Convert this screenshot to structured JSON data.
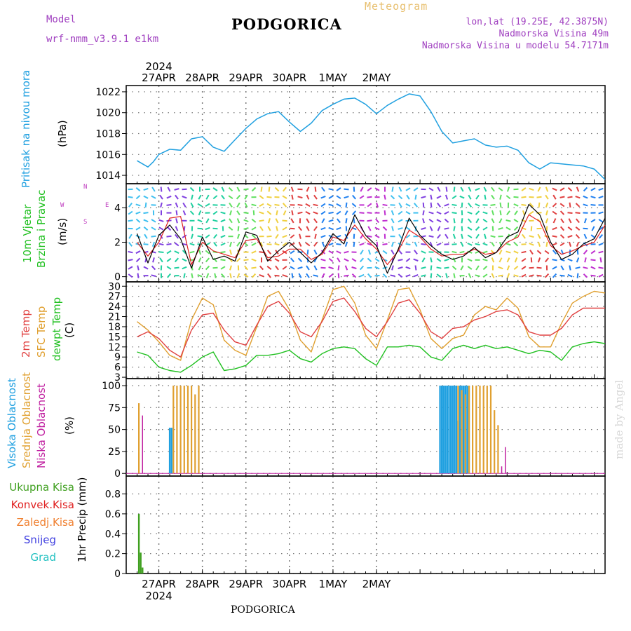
{
  "header": {
    "model_label": "Model",
    "model_name": "wrf-nmm_v3.9.1  e1km",
    "title": "PODGORICA",
    "meteogram_label": "Meteogram",
    "lonlat": "lon,lat (19.25E, 42.3875N)",
    "elevation": "Nadmorska Visina 49m",
    "model_elevation": "Nadmorska Visina u modelu 54.7171m"
  },
  "footer": {
    "station": "PODGORICA",
    "credit": "made by Angel"
  },
  "colors": {
    "pressure": "#20a0e0",
    "wind_label": "#20c020",
    "wind_speed": "#000000",
    "wind_speed_sfc": "#e02020",
    "temp2m": "#e04040",
    "sfc_temp": "#e0a030",
    "dewpt": "#20c020",
    "cloud_high": "#20a0e0",
    "cloud_mid": "#e0a030",
    "cloud_low": "#c020a0",
    "precip_total": "#40a020",
    "precip_conv": "#e02020",
    "precip_freez": "#f08030",
    "snow": "#4040e0",
    "grad": "#20c0c0",
    "compass": "#c040c0"
  },
  "chart_data": [
    {
      "type": "line",
      "panel": "pressure",
      "ylabel_main": "Pritisak na nivou mora",
      "ylabel_unit": "(hPa)",
      "yticks": [
        1014,
        1016,
        1018,
        1020,
        1022
      ],
      "ylim": [
        1013.2,
        1022.6
      ],
      "x_day_labels": [
        "27APR",
        "28APR",
        "29APR",
        "30APR",
        "1MAY",
        "2MAY"
      ],
      "year_label": "2024",
      "x_hours": [
        0,
        6,
        9,
        12,
        18,
        24,
        30,
        36,
        42,
        48,
        54,
        60,
        66,
        72,
        78,
        84,
        90,
        96,
        102,
        108,
        114,
        120,
        126,
        132,
        138,
        144,
        150,
        156,
        162,
        168,
        174,
        180,
        186,
        192,
        198,
        204,
        210,
        216,
        222,
        228,
        234,
        240,
        246,
        252,
        258
      ],
      "series": [
        {
          "name": "MSLP",
          "values": [
            1015.4,
            1014.8,
            1015.3,
            1016.0,
            1016.5,
            1016.4,
            1017.5,
            1017.7,
            1016.7,
            1016.3,
            1017.4,
            1018.5,
            1019.4,
            1019.9,
            1020.1,
            1019.1,
            1018.2,
            1019.0,
            1020.2,
            1020.8,
            1021.3,
            1021.4,
            1020.8,
            1019.9,
            1020.7,
            1021.3,
            1021.8,
            1021.6,
            1020.1,
            1018.2,
            1017.1,
            1017.3,
            1017.5,
            1016.9,
            1016.7,
            1016.8,
            1016.4,
            1015.2,
            1014.6,
            1015.2,
            1015.1,
            1015.0,
            1014.9,
            1014.6,
            1013.6
          ]
        }
      ]
    },
    {
      "type": "line",
      "panel": "wind",
      "ylabel_main_1": "10m Vjetar",
      "ylabel_main_2": "Brzina i Pravac",
      "ylabel_unit": "(m/s)",
      "compass_labels": {
        "n": "N",
        "w": "W",
        "e": "E",
        "s": "S"
      },
      "yticks": [
        0,
        2,
        4
      ],
      "ylim": [
        -0.3,
        5.4
      ],
      "x_hours": [
        0,
        6,
        12,
        18,
        24,
        30,
        36,
        42,
        48,
        54,
        60,
        66,
        72,
        78,
        84,
        90,
        96,
        102,
        108,
        114,
        120,
        126,
        132,
        138,
        144,
        150,
        156,
        162,
        168,
        174,
        180,
        186,
        192,
        198,
        204,
        210,
        216,
        222,
        228,
        234,
        240,
        246,
        252,
        258
      ],
      "series": [
        {
          "name": "10m wind",
          "values": [
            2.5,
            0.8,
            2.4,
            3.0,
            2.2,
            0.5,
            2.3,
            1.0,
            1.2,
            0.9,
            2.6,
            2.4,
            0.9,
            1.5,
            2.0,
            1.4,
            0.8,
            1.4,
            2.5,
            1.9,
            3.6,
            2.4,
            1.8,
            0.2,
            1.6,
            3.4,
            2.4,
            1.8,
            1.3,
            1.0,
            1.2,
            1.7,
            1.1,
            1.4,
            2.3,
            2.6,
            4.2,
            3.6,
            2.0,
            1.0,
            1.3,
            1.9,
            2.2,
            3.4
          ]
        },
        {
          "name": "surface wind",
          "values": [
            2.0,
            1.2,
            2.0,
            3.4,
            3.5,
            0.7,
            2.0,
            1.5,
            1.3,
            1.1,
            2.1,
            2.2,
            1.1,
            1.2,
            1.6,
            1.6,
            1.0,
            1.3,
            2.3,
            2.1,
            3.0,
            2.2,
            1.6,
            0.7,
            1.5,
            2.7,
            2.3,
            1.6,
            1.2,
            1.3,
            1.3,
            1.6,
            1.3,
            1.4,
            2.0,
            2.3,
            3.6,
            3.2,
            1.8,
            1.3,
            1.5,
            1.8,
            2.0,
            3.0
          ]
        }
      ]
    },
    {
      "type": "line",
      "panel": "temperature",
      "ylabel_1": "2m Temp",
      "ylabel_2": "SFC Temp",
      "ylabel_3": "dewpt Temp",
      "ylabel_unit": "(C)",
      "yticks": [
        3,
        6,
        9,
        12,
        15,
        18,
        21,
        24,
        27,
        30
      ],
      "ylim": [
        2.6,
        31.3
      ],
      "x_hours": [
        0,
        6,
        12,
        18,
        24,
        30,
        36,
        42,
        48,
        54,
        60,
        66,
        72,
        78,
        84,
        90,
        96,
        102,
        108,
        114,
        120,
        126,
        132,
        138,
        144,
        150,
        156,
        162,
        168,
        174,
        180,
        186,
        192,
        198,
        204,
        210,
        216,
        222,
        228,
        234,
        240,
        246,
        252,
        258
      ],
      "series": [
        {
          "name": "2m Temp",
          "values": [
            15.0,
            16.5,
            14.5,
            11.0,
            9.0,
            17.0,
            21.5,
            22.0,
            17.0,
            13.5,
            12.5,
            18.5,
            24.0,
            25.5,
            22.0,
            16.5,
            15.0,
            19.5,
            25.5,
            26.5,
            22.5,
            17.5,
            15.0,
            19.5,
            25.0,
            26.0,
            22.0,
            16.5,
            14.5,
            17.5,
            18.0,
            20.0,
            21.0,
            22.5,
            23.0,
            21.5,
            16.5,
            15.5,
            15.5,
            17.5,
            21.5,
            23.5,
            23.5,
            23.5
          ]
        },
        {
          "name": "SFC Temp",
          "values": [
            19.5,
            17.0,
            13.5,
            9.5,
            8.0,
            20.0,
            26.5,
            24.5,
            14.0,
            11.0,
            9.5,
            18.0,
            27.0,
            28.5,
            23.0,
            14.0,
            10.5,
            20.0,
            29.0,
            30.0,
            25.0,
            15.5,
            11.5,
            20.0,
            29.0,
            29.5,
            23.0,
            14.5,
            11.5,
            14.5,
            15.5,
            21.5,
            24.0,
            23.0,
            26.5,
            23.5,
            15.0,
            12.0,
            12.0,
            19.0,
            25.0,
            27.0,
            28.5,
            28.0
          ]
        },
        {
          "name": "dewpt Temp",
          "values": [
            10.5,
            9.5,
            6.0,
            5.0,
            4.5,
            6.5,
            9.0,
            10.5,
            5.0,
            5.5,
            6.5,
            9.5,
            9.5,
            10.0,
            11.0,
            8.5,
            7.5,
            10.0,
            11.5,
            12.0,
            11.5,
            8.5,
            6.5,
            12.0,
            12.0,
            12.5,
            12.0,
            9.0,
            8.0,
            11.5,
            12.5,
            11.5,
            12.5,
            11.5,
            12.0,
            11.0,
            10.0,
            11.0,
            10.5,
            8.0,
            12.0,
            13.0,
            13.5,
            13.0
          ]
        }
      ]
    },
    {
      "type": "bar",
      "panel": "clouds",
      "ylabel_1": "Visoka Oblacnost",
      "ylabel_2": "Srednja Oblacnost",
      "ylabel_3": "Niska  Oblacnost",
      "ylabel_unit": "(%)",
      "yticks": [
        0,
        25,
        50,
        75,
        100
      ],
      "ylim": [
        -3,
        108
      ],
      "series": [
        {
          "name": "high",
          "x": [
            18,
            19,
            167,
            168,
            169,
            170,
            171,
            172,
            173,
            174,
            175,
            176,
            177,
            178,
            179,
            180,
            181,
            182,
            183
          ],
          "values": [
            52,
            52,
            100,
            100,
            100,
            100,
            100,
            100,
            100,
            100,
            100,
            100,
            60,
            100,
            100,
            100,
            100,
            100,
            100
          ]
        },
        {
          "name": "mid",
          "x": [
            1,
            20,
            22,
            24,
            26,
            28,
            30,
            32,
            34,
            177,
            179,
            181,
            183,
            185,
            187,
            189,
            191,
            193,
            195,
            197,
            199
          ],
          "values": [
            80,
            100,
            100,
            100,
            100,
            100,
            100,
            90,
            100,
            100,
            95,
            90,
            100,
            100,
            100,
            100,
            100,
            100,
            100,
            72,
            55
          ]
        },
        {
          "name": "low",
          "x": [
            3,
            201,
            203
          ],
          "values": [
            66,
            8,
            30
          ]
        }
      ]
    },
    {
      "type": "bar",
      "panel": "precip",
      "ylabel_unit": "1hr Precip (mm)",
      "legend": [
        "Ukupna  Kisa",
        "Konvek.Kisa",
        "Zaledj.Kisa",
        "Snijeg",
        "Grad"
      ],
      "yticks": [
        0,
        0.2,
        0.4,
        0.6,
        0.8
      ],
      "ylim": [
        0,
        0.98
      ],
      "series": [
        {
          "name": "Ukupna  Kisa",
          "x": [
            1,
            2,
            3
          ],
          "values": [
            0.6,
            0.21,
            0.06
          ]
        }
      ]
    }
  ]
}
